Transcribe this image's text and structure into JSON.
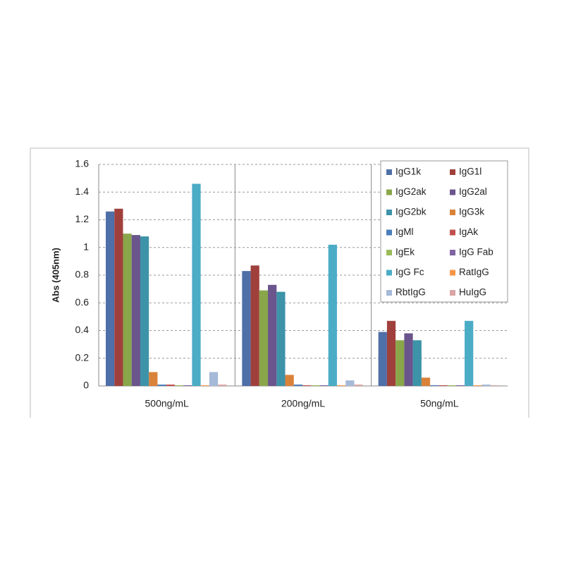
{
  "chart_data": {
    "type": "bar",
    "y_label": "Abs (405nm)",
    "categories": [
      "500ng/mL",
      "200ng/mL",
      "50ng/mL"
    ],
    "ylim": [
      0,
      1.6
    ],
    "yticks": [
      0,
      0.2,
      0.4,
      0.6,
      0.8,
      1,
      1.2,
      1.4,
      1.6
    ],
    "grid": true,
    "legend": "top-right",
    "series": [
      {
        "name": "IgG1k",
        "color": "#4f6fa8",
        "values": [
          1.26,
          0.83,
          0.39
        ]
      },
      {
        "name": "IgG1l",
        "color": "#a0403c",
        "values": [
          1.28,
          0.87,
          0.47
        ]
      },
      {
        "name": "IgG2ak",
        "color": "#8aa64a",
        "values": [
          1.1,
          0.69,
          0.33
        ]
      },
      {
        "name": "IgG2al",
        "color": "#6a558c",
        "values": [
          1.09,
          0.73,
          0.38
        ]
      },
      {
        "name": "IgG2bk",
        "color": "#3d93a8",
        "values": [
          1.08,
          0.68,
          0.33
        ]
      },
      {
        "name": "IgG3k",
        "color": "#d9823a",
        "values": [
          0.1,
          0.08,
          0.06
        ]
      },
      {
        "name": "IgMl",
        "color": "#4a7ebb",
        "values": [
          0.01,
          0.01,
          0.005
        ]
      },
      {
        "name": "IgAk",
        "color": "#c0504d",
        "values": [
          0.01,
          0.005,
          0.005
        ]
      },
      {
        "name": "IgEk",
        "color": "#9bbb59",
        "values": [
          0.005,
          0.005,
          0.005
        ]
      },
      {
        "name": "IgG Fab",
        "color": "#8064a2",
        "values": [
          0.005,
          0.005,
          0.005
        ]
      },
      {
        "name": "IgG Fc",
        "color": "#4bacc6",
        "values": [
          1.46,
          1.02,
          0.47
        ]
      },
      {
        "name": "RatIgG",
        "color": "#f79646",
        "values": [
          0.005,
          0.005,
          0.005
        ]
      },
      {
        "name": "RbtIgG",
        "color": "#a5b9d9",
        "values": [
          0.1,
          0.04,
          0.01
        ]
      },
      {
        "name": "HuIgG",
        "color": "#d9a6a5",
        "values": [
          0.01,
          0.01,
          0.005
        ]
      }
    ]
  }
}
